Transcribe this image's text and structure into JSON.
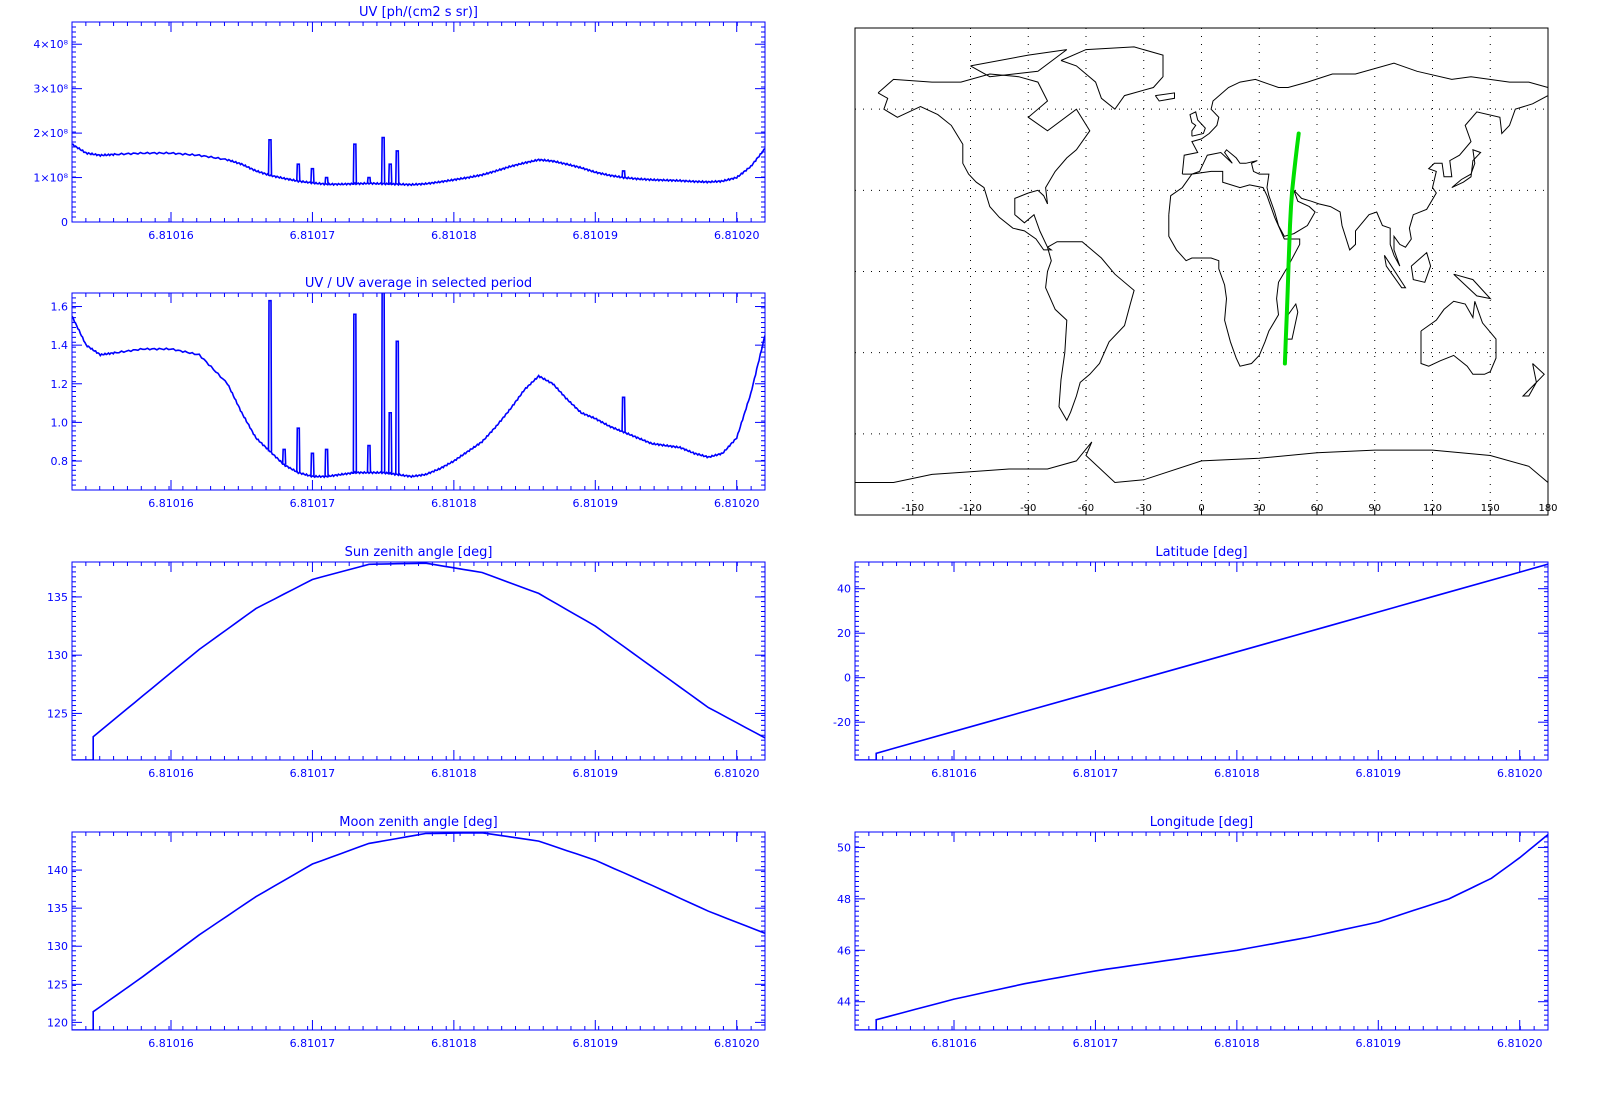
{
  "colors": {
    "axis": "#0000ff",
    "series": "#0000ff",
    "track": "#00e000",
    "map_border": "#000000",
    "coast": "#000000",
    "grid": "#000000"
  },
  "chart_data": [
    {
      "id": "uv",
      "type": "line",
      "title": "UV [ph/(cm2 s sr)]",
      "xlim": [
        6.810153,
        6.810202
      ],
      "ylim": [
        0,
        450000000.0
      ],
      "xticks": [
        6.81016,
        6.81017,
        6.81018,
        6.81019,
        6.8102
      ],
      "xtick_labels": [
        "6.81016",
        "6.81017",
        "6.81018",
        "6.81019",
        "6.81020"
      ],
      "yticks": [
        0,
        100000000.0,
        200000000.0,
        300000000.0,
        400000000.0
      ],
      "ytick_labels": [
        "0",
        "1×10⁸",
        "2×10⁸",
        "3×10⁸",
        "4×10⁸"
      ],
      "x": [
        6.810153,
        6.810154,
        6.810155,
        6.810156,
        6.810158,
        6.81016,
        6.810162,
        6.810164,
        6.810165,
        6.810166,
        6.810167,
        6.810168,
        6.810169,
        6.81017,
        6.810171,
        6.810172,
        6.810173,
        6.810174,
        6.810175,
        6.810176,
        6.810177,
        6.810178,
        6.810179,
        6.81018,
        6.810181,
        6.810182,
        6.810183,
        6.810184,
        6.810185,
        6.810186,
        6.810187,
        6.810188,
        6.810189,
        6.81019,
        6.810191,
        6.810192,
        6.810193,
        6.810194,
        6.810195,
        6.810196,
        6.810197,
        6.810198,
        6.810199,
        6.8102,
        6.810201,
        6.810202
      ],
      "series": [
        {
          "values": [
            175000000.0,
            155000000.0,
            150000000.0,
            152000000.0,
            155000000.0,
            155000000.0,
            150000000.0,
            140000000.0,
            130000000.0,
            115000000.0,
            105000000.0,
            98000000.0,
            92000000.0,
            88000000.0,
            85000000.0,
            85000000.0,
            86000000.0,
            87000000.0,
            86000000.0,
            85000000.0,
            84000000.0,
            86000000.0,
            90000000.0,
            95000000.0,
            100000000.0,
            106000000.0,
            115000000.0,
            125000000.0,
            133000000.0,
            140000000.0,
            137000000.0,
            130000000.0,
            122000000.0,
            112000000.0,
            105000000.0,
            100000000.0,
            97000000.0,
            95000000.0,
            94000000.0,
            93000000.0,
            91000000.0,
            90000000.0,
            92000000.0,
            100000000.0,
            125000000.0,
            165000000.0
          ]
        }
      ],
      "spikes": [
        [
          6.810167,
          185000000.0
        ],
        [
          6.810169,
          130000000.0
        ],
        [
          6.81017,
          120000000.0
        ],
        [
          6.810171,
          100000000.0
        ],
        [
          6.810173,
          175000000.0
        ],
        [
          6.810174,
          100000000.0
        ],
        [
          6.810175,
          190000000.0
        ],
        [
          6.8101755,
          130000000.0
        ],
        [
          6.810176,
          160000000.0
        ],
        [
          6.810192,
          115000000.0
        ]
      ]
    },
    {
      "id": "uv_ratio",
      "type": "line",
      "title": "UV / UV average in selected period",
      "xlim": [
        6.810153,
        6.810202
      ],
      "ylim": [
        0.65,
        1.67
      ],
      "xticks": [
        6.81016,
        6.81017,
        6.81018,
        6.81019,
        6.8102
      ],
      "xtick_labels": [
        "6.81016",
        "6.81017",
        "6.81018",
        "6.81019",
        "6.81020"
      ],
      "yticks": [
        0.8,
        1.0,
        1.2,
        1.4,
        1.6
      ],
      "ytick_labels": [
        "0.8",
        "1.0",
        "1.2",
        "1.4",
        "1.6"
      ],
      "x": [
        6.810153,
        6.810154,
        6.810155,
        6.810156,
        6.810158,
        6.81016,
        6.810162,
        6.810164,
        6.810165,
        6.810166,
        6.810167,
        6.810168,
        6.810169,
        6.81017,
        6.810171,
        6.810172,
        6.810173,
        6.810174,
        6.810175,
        6.810176,
        6.810177,
        6.810178,
        6.810179,
        6.81018,
        6.810181,
        6.810182,
        6.810183,
        6.810184,
        6.810185,
        6.810186,
        6.810187,
        6.810188,
        6.810189,
        6.81019,
        6.810191,
        6.810192,
        6.810193,
        6.810194,
        6.810195,
        6.810196,
        6.810197,
        6.810198,
        6.810199,
        6.8102,
        6.810201,
        6.810202
      ],
      "series": [
        {
          "values": [
            1.55,
            1.4,
            1.35,
            1.36,
            1.38,
            1.38,
            1.35,
            1.2,
            1.05,
            0.92,
            0.85,
            0.78,
            0.74,
            0.72,
            0.72,
            0.73,
            0.74,
            0.74,
            0.74,
            0.73,
            0.72,
            0.73,
            0.76,
            0.8,
            0.85,
            0.9,
            0.98,
            1.07,
            1.17,
            1.24,
            1.2,
            1.12,
            1.05,
            1.02,
            0.98,
            0.95,
            0.92,
            0.89,
            0.88,
            0.87,
            0.84,
            0.82,
            0.84,
            0.92,
            1.15,
            1.45
          ]
        }
      ],
      "spikes": [
        [
          6.810167,
          1.63
        ],
        [
          6.810168,
          0.86
        ],
        [
          6.810169,
          0.97
        ],
        [
          6.81017,
          0.84
        ],
        [
          6.810171,
          0.86
        ],
        [
          6.810173,
          1.56
        ],
        [
          6.810174,
          0.88
        ],
        [
          6.810175,
          1.69
        ],
        [
          6.8101755,
          1.05
        ],
        [
          6.810176,
          1.42
        ],
        [
          6.810192,
          1.13
        ]
      ]
    },
    {
      "id": "sun",
      "type": "line",
      "title": "Sun zenith angle [deg]",
      "xlim": [
        6.810153,
        6.810202
      ],
      "ylim": [
        121,
        138
      ],
      "xticks": [
        6.81016,
        6.81017,
        6.81018,
        6.81019,
        6.8102
      ],
      "xtick_labels": [
        "6.81016",
        "6.81017",
        "6.81018",
        "6.81019",
        "6.81020"
      ],
      "yticks": [
        125,
        130,
        135
      ],
      "ytick_labels": [
        "125",
        "130",
        "135"
      ],
      "x": [
        6.810153,
        6.8101545,
        6.8101545,
        6.810158,
        6.810162,
        6.810166,
        6.81017,
        6.810174,
        6.810178,
        6.810182,
        6.810186,
        6.81019,
        6.810194,
        6.810198,
        6.810202
      ],
      "series": [
        {
          "values": [
            121,
            121,
            123,
            126.5,
            130.5,
            134,
            136.5,
            137.8,
            137.9,
            137.1,
            135.3,
            132.5,
            129,
            125.5,
            122.9
          ]
        }
      ]
    },
    {
      "id": "latitude",
      "type": "line",
      "title": "Latitude [deg]",
      "xlim": [
        6.810153,
        6.810202
      ],
      "ylim": [
        -37,
        52
      ],
      "xticks": [
        6.81016,
        6.81017,
        6.81018,
        6.81019,
        6.8102
      ],
      "xtick_labels": [
        "6.81016",
        "6.81017",
        "6.81018",
        "6.81019",
        "6.81020"
      ],
      "yticks": [
        -20,
        0,
        20,
        40
      ],
      "ytick_labels": [
        "-20",
        "0",
        "20",
        "40"
      ],
      "x": [
        6.810153,
        6.8101545,
        6.8101545,
        6.810202
      ],
      "series": [
        {
          "values": [
            -37,
            -37,
            -34,
            51
          ]
        }
      ]
    },
    {
      "id": "moon",
      "type": "line",
      "title": "Moon zenith angle [deg]",
      "xlim": [
        6.810153,
        6.810202
      ],
      "ylim": [
        119,
        145
      ],
      "xticks": [
        6.81016,
        6.81017,
        6.81018,
        6.81019,
        6.8102
      ],
      "xtick_labels": [
        "6.81016",
        "6.81017",
        "6.81018",
        "6.81019",
        "6.81020"
      ],
      "yticks": [
        120,
        125,
        130,
        135,
        140
      ],
      "ytick_labels": [
        "120",
        "125",
        "130",
        "135",
        "140"
      ],
      "x": [
        6.810153,
        6.8101545,
        6.8101545,
        6.810158,
        6.810162,
        6.810166,
        6.81017,
        6.810174,
        6.810178,
        6.810182,
        6.810186,
        6.81019,
        6.810194,
        6.810198,
        6.810202
      ],
      "series": [
        {
          "values": [
            119,
            119,
            121.4,
            126,
            131.5,
            136.5,
            140.8,
            143.5,
            144.8,
            144.9,
            143.8,
            141.3,
            138,
            134.6,
            131.7
          ]
        }
      ]
    },
    {
      "id": "longitude",
      "type": "line",
      "title": "Longitude [deg]",
      "xlim": [
        6.810153,
        6.810202
      ],
      "ylim": [
        42.9,
        50.6
      ],
      "xticks": [
        6.81016,
        6.81017,
        6.81018,
        6.81019,
        6.8102
      ],
      "xtick_labels": [
        "6.81016",
        "6.81017",
        "6.81018",
        "6.81019",
        "6.81020"
      ],
      "yticks": [
        44,
        46,
        48,
        50
      ],
      "ytick_labels": [
        "44",
        "46",
        "48",
        "50"
      ],
      "x": [
        6.810153,
        6.8101545,
        6.8101545,
        6.81016,
        6.810165,
        6.81017,
        6.810175,
        6.81018,
        6.810185,
        6.81019,
        6.810195,
        6.810198,
        6.8102,
        6.810202
      ],
      "series": [
        {
          "values": [
            42.9,
            42.9,
            43.3,
            44.1,
            44.7,
            45.2,
            45.6,
            46.0,
            46.5,
            47.1,
            48.0,
            48.8,
            49.6,
            50.5
          ]
        }
      ]
    },
    {
      "id": "map",
      "type": "scatter",
      "xlim": [
        -180,
        180
      ],
      "ylim": [
        -90,
        90
      ],
      "xticks": [
        -150,
        -120,
        -90,
        -60,
        -30,
        0,
        30,
        60,
        90,
        120,
        150,
        180
      ],
      "xtick_labels": [
        "-150",
        "-120",
        "-90",
        "-60",
        "-30",
        "0",
        "30",
        "60",
        "90",
        "120",
        "150",
        "180"
      ],
      "grid": true,
      "track": {
        "lon": [
          43.3,
          43.8,
          44.3,
          44.8,
          45.2,
          45.6,
          46.0,
          46.5,
          47.1,
          48.0,
          48.8,
          49.6,
          50.5
        ],
        "lat": [
          -34,
          -25,
          -16,
          -7,
          2,
          10,
          17,
          24,
          30,
          36,
          41,
          46,
          51
        ]
      }
    }
  ]
}
